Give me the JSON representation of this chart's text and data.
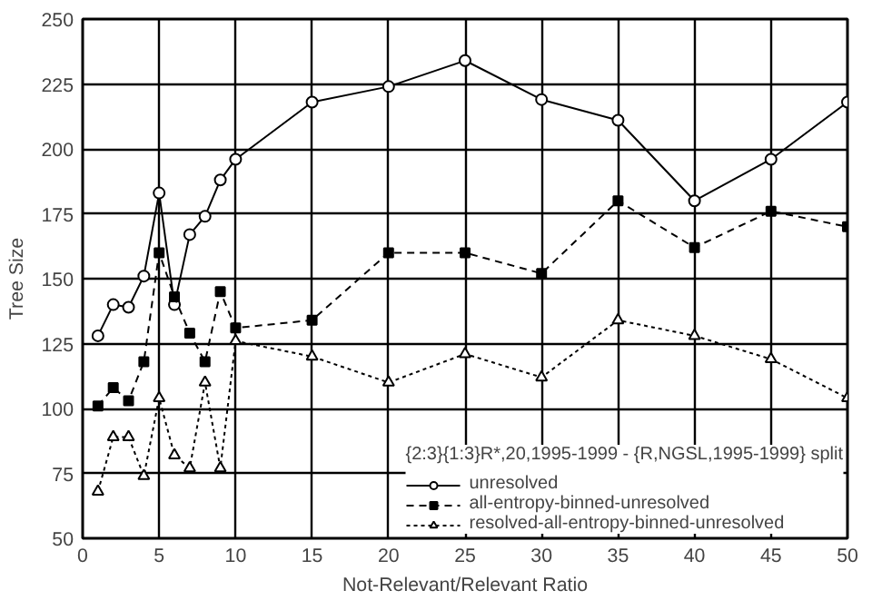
{
  "chart_data": {
    "type": "line",
    "xlabel": "Not-Relevant/Relevant Ratio",
    "ylabel": "Tree Size",
    "legend_title": "{2:3}{1:3}R*,20,1995-1999 - {R,NGSL,1995-1999} split",
    "x": [
      1,
      2,
      3,
      4,
      5,
      6,
      7,
      8,
      9,
      10,
      15,
      20,
      25,
      30,
      35,
      40,
      45,
      50
    ],
    "series": [
      {
        "name": "unresolved",
        "color": "#000000",
        "marker": "circle",
        "line_style": "solid",
        "values": [
          128,
          140,
          139,
          151,
          183,
          140,
          167,
          174,
          188,
          196,
          218,
          224,
          234,
          219,
          211,
          180,
          196,
          218
        ]
      },
      {
        "name": "all-entropy-binned-unresolved",
        "color": "#000000",
        "marker": "square",
        "line_style": "dashed",
        "values": [
          101,
          108,
          103,
          118,
          160,
          143,
          129,
          118,
          145,
          131,
          134,
          160,
          160,
          152,
          180,
          162,
          176,
          170
        ]
      },
      {
        "name": "resolved-all-entropy-binned-unresolved",
        "color": "#000000",
        "marker": "triangle",
        "line_style": "dotted",
        "values": [
          68,
          89,
          89,
          74,
          104,
          82,
          77,
          110,
          77,
          126,
          120,
          110,
          121,
          112,
          134,
          128,
          119,
          104
        ]
      }
    ],
    "xlim": [
      0,
      50
    ],
    "xticks": [
      0,
      5,
      10,
      15,
      20,
      25,
      30,
      35,
      40,
      45,
      50
    ],
    "ylim": [
      50,
      250
    ],
    "yticks": [
      50,
      75,
      100,
      125,
      150,
      175,
      200,
      225,
      250
    ],
    "grid": true,
    "legend": "bottom right"
  }
}
